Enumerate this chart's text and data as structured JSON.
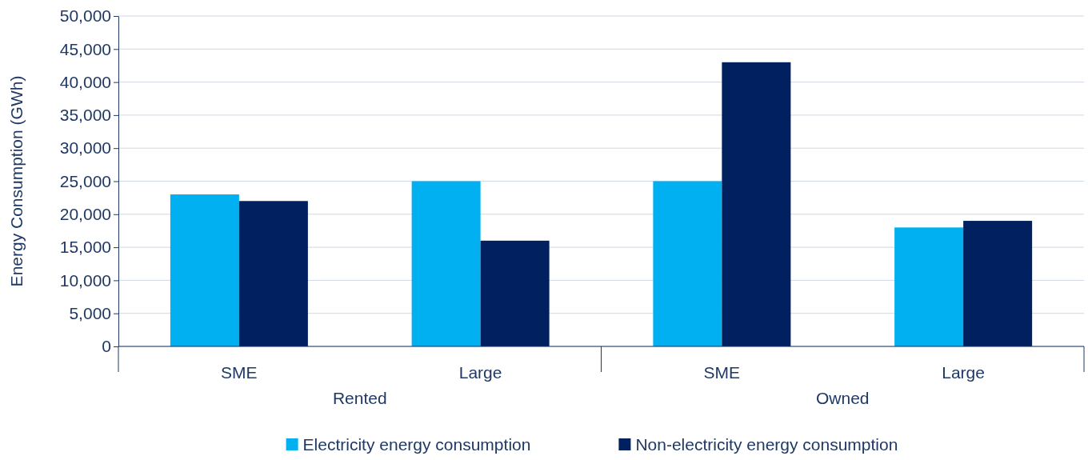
{
  "chart_data": {
    "type": "bar",
    "ylabel": "Energy Consumption (GWh)",
    "categories": [
      "SME",
      "Large",
      "SME",
      "Large"
    ],
    "annotations": [
      "Rented",
      "Owned"
    ],
    "series": [
      {
        "name": "Electricity energy consumption",
        "color": "#00b0f0",
        "values": [
          23000,
          25000,
          25000,
          18000
        ]
      },
      {
        "name": "Non-electricity energy consumption",
        "color": "#002060",
        "values": [
          22000,
          16000,
          43000,
          19000
        ]
      }
    ],
    "ylim": [
      0,
      50000
    ],
    "yticks": [
      {
        "value": 0,
        "label": "0"
      },
      {
        "value": 5000,
        "label": "5,000"
      },
      {
        "value": 10000,
        "label": "10,000"
      },
      {
        "value": 15000,
        "label": "15,000"
      },
      {
        "value": 20000,
        "label": "20,000"
      },
      {
        "value": 25000,
        "label": "25,000"
      },
      {
        "value": 30000,
        "label": "30,000"
      },
      {
        "value": 35000,
        "label": "35,000"
      },
      {
        "value": 40000,
        "label": "40,000"
      },
      {
        "value": 45000,
        "label": "45,000"
      },
      {
        "value": 50000,
        "label": "50,000"
      }
    ],
    "grid": "y",
    "legend": "bottom"
  }
}
